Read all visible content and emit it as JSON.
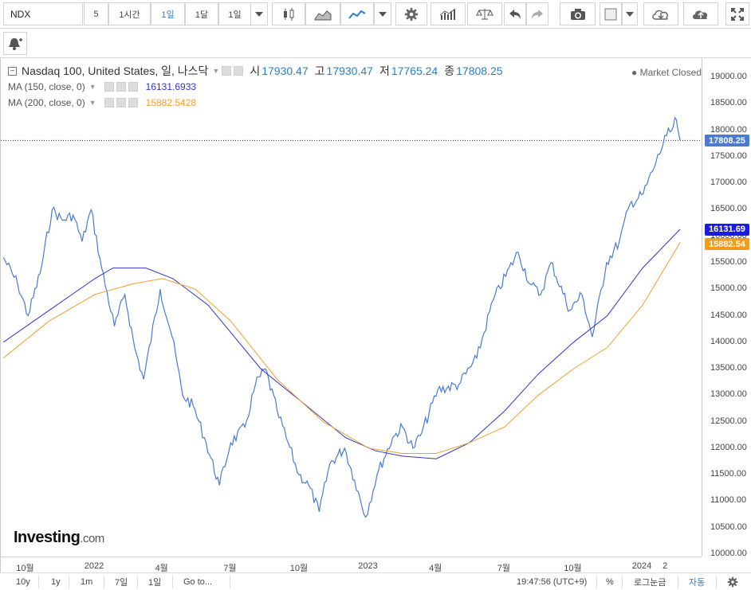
{
  "toolbar": {
    "symbol": "NDX",
    "intervals": [
      "5",
      "1시간",
      "1일",
      "1달",
      "1일"
    ],
    "active_interval": "1일",
    "icons": [
      "dropdown-icon",
      "candlestick-icon",
      "area-chart-icon",
      "line-chart-icon",
      "dropdown-icon",
      "gear-icon",
      "indicators-icon",
      "scale-icon",
      "undo-icon",
      "redo-icon",
      "camera-icon",
      "color-square-icon",
      "dropdown-icon",
      "cloud-download-icon",
      "cloud-upload-icon",
      "fullscreen-icon"
    ]
  },
  "toolbar2": {
    "alert_icon": "add-alert-icon"
  },
  "legend": {
    "title": "Nasdaq 100, United States, 일, 나스닥",
    "ohlc": [
      {
        "label": "시",
        "value": "17930.47"
      },
      {
        "label": "고",
        "value": "17930.47"
      },
      {
        "label": "저",
        "value": "17765.24"
      },
      {
        "label": "종",
        "value": "17808.25"
      }
    ],
    "ma": [
      {
        "label": "MA (150, close, 0)",
        "value": "16131.6933",
        "color": "#3333cc"
      },
      {
        "label": "MA (200, close, 0)",
        "value": "15882.5428",
        "color": "#f0a030"
      }
    ],
    "market_status": "Market Closed"
  },
  "logo": {
    "main": "Investing",
    "suffix": ".com"
  },
  "price_tags": [
    {
      "value": "17808.25",
      "price": 17808.25,
      "color": "#4a7bd0"
    },
    {
      "value": "16131.69",
      "price": 16131.69,
      "color": "#1a1ae6"
    },
    {
      "value": "15882.54",
      "price": 15882.54,
      "color": "#f59a1a"
    }
  ],
  "chart_data": {
    "type": "line",
    "yticks": [
      "19000.00",
      "18500.00",
      "18000.00",
      "17500.00",
      "17000.00",
      "16500.00",
      "16000.00",
      "15500.00",
      "15000.00",
      "14500.00",
      "14000.00",
      "13500.00",
      "13000.00",
      "12500.00",
      "12000.00",
      "11500.00",
      "11000.00",
      "10500.00",
      "10000.00"
    ],
    "ylim": [
      10000,
      19000
    ],
    "xticks": [
      "10월",
      "2022",
      "4월",
      "7월",
      "10월",
      "2023",
      "4월",
      "7월",
      "10월",
      "2024",
      "2"
    ],
    "series": [
      {
        "name": "Nasdaq 100",
        "color": "#4a7bd0",
        "x": [
          "2021-09-01",
          "2021-09-20",
          "2021-10-04",
          "2021-10-20",
          "2021-11-05",
          "2021-11-19",
          "2021-12-03",
          "2021-12-15",
          "2021-12-27",
          "2022-01-10",
          "2022-01-27",
          "2022-02-10",
          "2022-02-23",
          "2022-03-07",
          "2022-03-29",
          "2022-04-14",
          "2022-04-28",
          "2022-05-12",
          "2022-05-27",
          "2022-06-16",
          "2022-07-01",
          "2022-07-20",
          "2022-08-03",
          "2022-08-16",
          "2022-09-01",
          "2022-09-13",
          "2022-09-30",
          "2022-10-13",
          "2022-10-27",
          "2022-11-10",
          "2022-11-30",
          "2022-12-13",
          "2022-12-28",
          "2023-01-12",
          "2023-02-02",
          "2023-02-15",
          "2023-03-01",
          "2023-03-13",
          "2023-04-03",
          "2023-05-01",
          "2023-05-25",
          "2023-06-16",
          "2023-07-19",
          "2023-08-04",
          "2023-08-18",
          "2023-09-01",
          "2023-09-26",
          "2023-10-12",
          "2023-10-26",
          "2023-11-14",
          "2023-12-01",
          "2023-12-15",
          "2024-01-02",
          "2024-01-19",
          "2024-02-02",
          "2024-02-09",
          "2024-02-15",
          "2024-02-20"
        ],
        "values": [
          15600,
          15100,
          14500,
          15300,
          16500,
          16300,
          16400,
          15900,
          16500,
          15400,
          14300,
          14900,
          13900,
          13300,
          15000,
          14100,
          13000,
          12800,
          12200,
          11300,
          12100,
          12400,
          13200,
          13500,
          12700,
          12200,
          11500,
          11300,
          10800,
          11700,
          12000,
          11400,
          10700,
          11500,
          12200,
          12400,
          12000,
          12300,
          13100,
          13200,
          13700,
          14800,
          15700,
          15100,
          14900,
          15500,
          14600,
          14900,
          14100,
          15500,
          15900,
          16600,
          16800,
          17400,
          17900,
          18000,
          18200,
          17808.25
        ]
      },
      {
        "name": "MA (150, close, 0)",
        "color": "#3333cc",
        "x": [
          "2021-09-01",
          "2021-11-01",
          "2022-01-01",
          "2022-01-25",
          "2022-03-10",
          "2022-04-15",
          "2022-06-01",
          "2022-08-10",
          "2022-10-10",
          "2022-12-01",
          "2023-01-10",
          "2023-02-15",
          "2023-04-01",
          "2023-05-15",
          "2023-07-01",
          "2023-08-15",
          "2023-10-01",
          "2023-11-15",
          "2024-01-01",
          "2024-02-20"
        ],
        "values": [
          14000,
          14600,
          15200,
          15400,
          15400,
          15200,
          14700,
          13500,
          12800,
          12200,
          11950,
          11850,
          11800,
          12100,
          12700,
          13400,
          14000,
          14500,
          15400,
          16131.69
        ]
      },
      {
        "name": "MA (200, close, 0)",
        "color": "#f0a030",
        "x": [
          "2021-09-01",
          "2021-11-01",
          "2022-01-01",
          "2022-02-20",
          "2022-04-01",
          "2022-05-15",
          "2022-07-01",
          "2022-09-01",
          "2022-11-01",
          "2023-01-01",
          "2023-02-15",
          "2023-04-01",
          "2023-05-15",
          "2023-07-01",
          "2023-08-15",
          "2023-10-01",
          "2023-11-15",
          "2024-01-01",
          "2024-02-20"
        ],
        "values": [
          13700,
          14400,
          14900,
          15100,
          15200,
          15000,
          14400,
          13300,
          12500,
          12000,
          11900,
          11900,
          12100,
          12400,
          13000,
          13500,
          13900,
          14700,
          15882.54
        ]
      }
    ]
  },
  "bottom": {
    "ranges": [
      "10y",
      "1y",
      "1m",
      "7일",
      "1일"
    ],
    "goto": "Go to...",
    "time": "19:47:56 (UTC+9)",
    "percent": "%",
    "log": "로그눈금",
    "auto": "자동",
    "gear": "gear-icon"
  }
}
